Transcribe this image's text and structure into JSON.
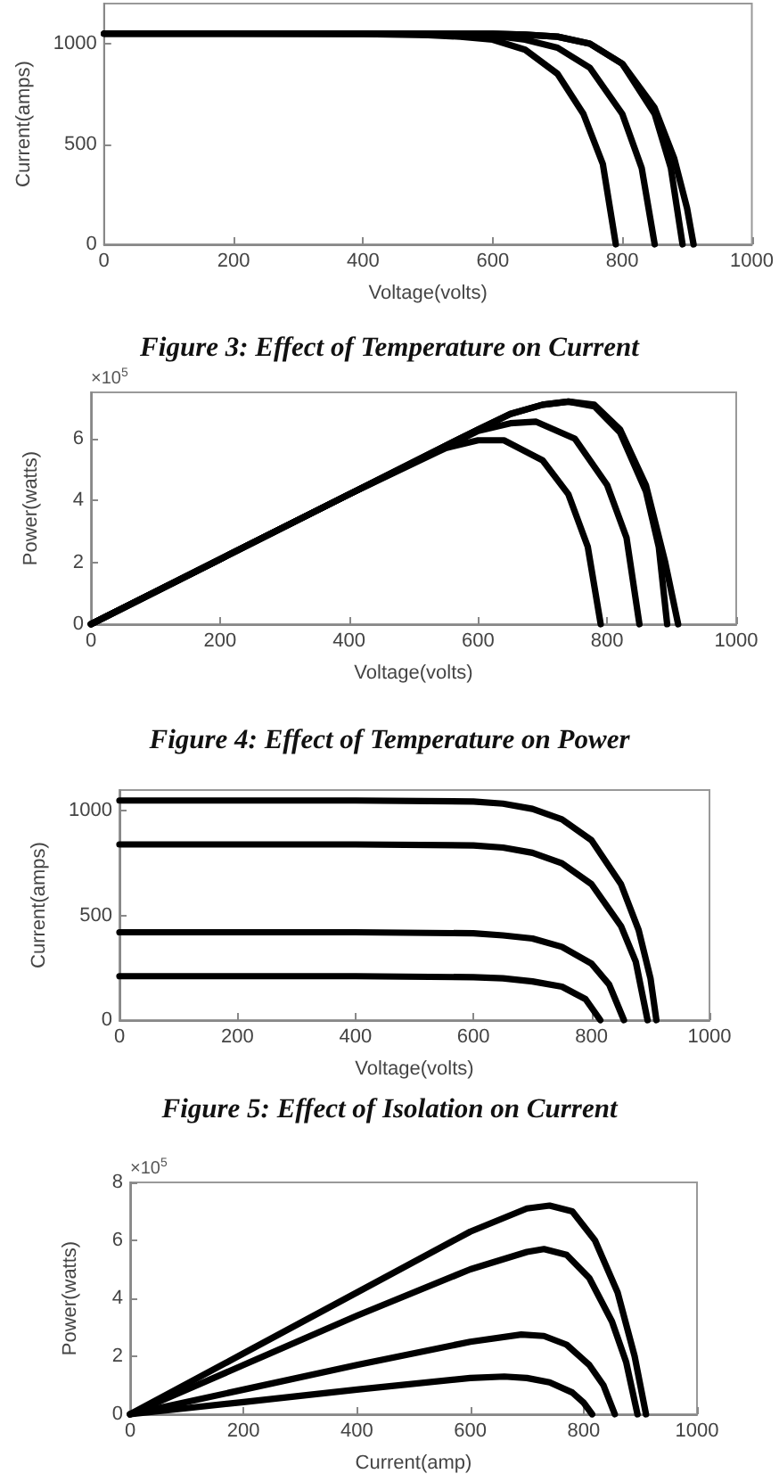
{
  "chart_data": [
    {
      "type": "line",
      "title": "Figure 3: Effect of Temperature on Current",
      "xlabel": "Voltage(volts)",
      "ylabel": "Current(amps)",
      "xlim": [
        0,
        1000
      ],
      "xticks": [
        0,
        200,
        400,
        600,
        800,
        1000
      ],
      "ylim": [
        0,
        1200
      ],
      "yticks": [
        0,
        500,
        1000
      ],
      "grid": false,
      "marker": "none",
      "line_style": "solid",
      "series": [
        {
          "color": "#000000",
          "x": [
            0,
            200,
            400,
            500,
            550,
            600,
            650,
            700,
            740,
            770,
            790
          ],
          "values": [
            1050,
            1050,
            1048,
            1043,
            1035,
            1020,
            970,
            850,
            650,
            400,
            0
          ]
        },
        {
          "color": "#000000",
          "x": [
            0,
            400,
            550,
            600,
            650,
            700,
            750,
            800,
            830,
            850
          ],
          "values": [
            1050,
            1050,
            1045,
            1040,
            1020,
            980,
            880,
            650,
            380,
            0
          ]
        },
        {
          "color": "#000000",
          "x": [
            0,
            400,
            600,
            650,
            700,
            750,
            800,
            850,
            880,
            900,
            910
          ],
          "values": [
            1050,
            1050,
            1050,
            1045,
            1035,
            1000,
            900,
            680,
            430,
            180,
            0
          ]
        },
        {
          "color": "#000000",
          "x": [
            0,
            400,
            600,
            650,
            700,
            750,
            800,
            850,
            875,
            893
          ],
          "values": [
            1050,
            1050,
            1050,
            1045,
            1035,
            1000,
            900,
            650,
            380,
            0
          ]
        }
      ]
    },
    {
      "type": "line",
      "title": "Figure 4: Effect of Temperature on Power",
      "xlabel": "Voltage(volts)",
      "ylabel": "Power(watts)",
      "annotations": [
        "×10$^{5}$"
      ],
      "xlim": [
        0,
        1000
      ],
      "xticks": [
        0,
        200,
        400,
        600,
        800,
        1000
      ],
      "ylim": [
        0,
        7.5
      ],
      "yticks": [
        0,
        2,
        4,
        6
      ],
      "grid": false,
      "marker": "none",
      "line_style": "solid",
      "series": [
        {
          "color": "#000000",
          "x": [
            0,
            200,
            400,
            550,
            600,
            640,
            700,
            740,
            770,
            790
          ],
          "values": [
            0,
            2.1,
            4.2,
            5.7,
            5.95,
            5.95,
            5.3,
            4.2,
            2.5,
            0
          ]
        },
        {
          "color": "#000000",
          "x": [
            0,
            200,
            400,
            600,
            650,
            690,
            750,
            800,
            830,
            850
          ],
          "values": [
            0,
            2.1,
            4.2,
            6.25,
            6.5,
            6.55,
            6.0,
            4.5,
            2.8,
            0
          ]
        },
        {
          "color": "#000000",
          "x": [
            0,
            200,
            400,
            600,
            650,
            700,
            740,
            780,
            820,
            860,
            890,
            910
          ],
          "values": [
            0,
            2.1,
            4.2,
            6.3,
            6.8,
            7.1,
            7.2,
            7.1,
            6.3,
            4.5,
            2,
            0
          ]
        },
        {
          "color": "#000000",
          "x": [
            0,
            200,
            400,
            600,
            650,
            700,
            740,
            780,
            820,
            860,
            880,
            893
          ],
          "values": [
            0,
            2.1,
            4.2,
            6.3,
            6.8,
            7.1,
            7.2,
            7.05,
            6.2,
            4.3,
            2.5,
            0
          ]
        }
      ]
    },
    {
      "type": "line",
      "title": "Figure 5: Effect of Isolation on Current",
      "xlabel": "Voltage(volts)",
      "ylabel": "Current(amps)",
      "xlim": [
        0,
        1000
      ],
      "xticks": [
        0,
        200,
        400,
        600,
        800,
        1000
      ],
      "ylim": [
        0,
        1100
      ],
      "yticks": [
        0,
        500,
        1000
      ],
      "grid": false,
      "marker": "none",
      "line_style": "solid",
      "series": [
        {
          "color": "#000000",
          "x": [
            0,
            400,
            600,
            650,
            700,
            750,
            800,
            850,
            880,
            900,
            910
          ],
          "values": [
            1050,
            1050,
            1045,
            1035,
            1010,
            960,
            860,
            650,
            430,
            200,
            0
          ]
        },
        {
          "color": "#000000",
          "x": [
            0,
            400,
            600,
            650,
            700,
            750,
            800,
            850,
            875,
            895
          ],
          "values": [
            840,
            840,
            835,
            825,
            800,
            750,
            650,
            450,
            280,
            0
          ]
        },
        {
          "color": "#000000",
          "x": [
            0,
            400,
            600,
            650,
            700,
            750,
            800,
            830,
            855
          ],
          "values": [
            420,
            420,
            415,
            405,
            390,
            350,
            270,
            170,
            0
          ]
        },
        {
          "color": "#000000",
          "x": [
            0,
            400,
            600,
            650,
            700,
            750,
            790,
            815
          ],
          "values": [
            210,
            210,
            205,
            200,
            185,
            160,
            100,
            0
          ]
        }
      ]
    },
    {
      "type": "line",
      "xlabel": "Current(amp)",
      "ylabel": "Power(watts)",
      "annotations": [
        "×10$^{5}$"
      ],
      "xlim": [
        0,
        1000
      ],
      "xticks": [
        0,
        200,
        400,
        600,
        800,
        1000
      ],
      "ylim": [
        0,
        8
      ],
      "yticks": [
        0,
        2,
        4,
        6,
        8
      ],
      "grid": false,
      "marker": "none",
      "line_style": "solid",
      "series": [
        {
          "color": "#000000",
          "x": [
            0,
            200,
            400,
            600,
            700,
            740,
            780,
            820,
            860,
            890,
            910
          ],
          "values": [
            0,
            2.1,
            4.2,
            6.3,
            7.1,
            7.2,
            7.0,
            6.0,
            4.2,
            2.0,
            0
          ]
        },
        {
          "color": "#000000",
          "x": [
            0,
            200,
            400,
            600,
            700,
            730,
            770,
            810,
            850,
            875,
            895
          ],
          "values": [
            0,
            1.7,
            3.4,
            5.0,
            5.6,
            5.7,
            5.5,
            4.7,
            3.2,
            1.8,
            0
          ]
        },
        {
          "color": "#000000",
          "x": [
            0,
            200,
            400,
            600,
            690,
            730,
            770,
            810,
            835,
            855
          ],
          "values": [
            0,
            0.85,
            1.7,
            2.5,
            2.75,
            2.7,
            2.4,
            1.7,
            1.0,
            0
          ]
        },
        {
          "color": "#000000",
          "x": [
            0,
            200,
            400,
            600,
            660,
            700,
            740,
            780,
            800,
            815
          ],
          "values": [
            0,
            0.42,
            0.85,
            1.25,
            1.3,
            1.25,
            1.1,
            0.75,
            0.4,
            0
          ]
        }
      ]
    }
  ]
}
